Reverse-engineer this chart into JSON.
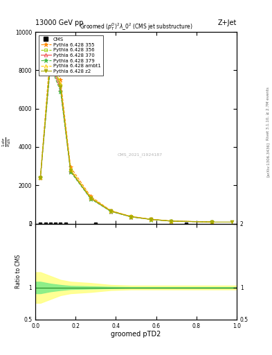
{
  "title_top": "13000 GeV pp",
  "title_right": "Z+Jet",
  "title_main": "Groomed $(p_T^D)^2\\lambda\\_0^2$ (CMS jet substructure)",
  "xlabel": "groomed pTD2",
  "ylabel_ratio": "Ratio to CMS",
  "right_label": "Rivet 3.1.10, ≥ 2.7M events",
  "arxiv_label": "[arXiv:1306.3436]",
  "watermark": "CMS_2021_I1924187",
  "lines": [
    {
      "label": "Pythia 6.428 355",
      "color": "#ff8800",
      "linestyle": "--",
      "marker": "*",
      "mfc": "#ff8800",
      "x": [
        0.025,
        0.075,
        0.125,
        0.175,
        0.275,
        0.375,
        0.475,
        0.575,
        0.675,
        0.875
      ],
      "y": [
        2400,
        9100,
        7500,
        2950,
        1420,
        680,
        380,
        230,
        140,
        90
      ]
    },
    {
      "label": "Pythia 6.428 356",
      "color": "#99cc00",
      "linestyle": "--",
      "marker": "s",
      "mfc": "none",
      "x": [
        0.025,
        0.075,
        0.125,
        0.175,
        0.275,
        0.375,
        0.475,
        0.575,
        0.675,
        0.875
      ],
      "y": [
        2400,
        8700,
        7200,
        2800,
        1350,
        660,
        365,
        225,
        135,
        88
      ]
    },
    {
      "label": "Pythia 6.428 370",
      "color": "#ee4444",
      "linestyle": "-",
      "marker": "^",
      "mfc": "none",
      "x": [
        0.025,
        0.075,
        0.125,
        0.175,
        0.275,
        0.375,
        0.475,
        0.575,
        0.675,
        0.875
      ],
      "y": [
        2400,
        8400,
        7000,
        2750,
        1310,
        645,
        358,
        220,
        132,
        85
      ]
    },
    {
      "label": "Pythia 6.428 379",
      "color": "#44bb44",
      "linestyle": "--",
      "marker": "*",
      "mfc": "#44bb44",
      "x": [
        0.025,
        0.075,
        0.125,
        0.175,
        0.275,
        0.375,
        0.475,
        0.575,
        0.675,
        0.875
      ],
      "y": [
        2400,
        8200,
        6900,
        2700,
        1290,
        635,
        352,
        216,
        130,
        83
      ]
    },
    {
      "label": "Pythia 6.428 ambt1",
      "color": "#ffcc00",
      "linestyle": "--",
      "marker": "^",
      "mfc": "none",
      "x": [
        0.025,
        0.075,
        0.125,
        0.175,
        0.275,
        0.375,
        0.475,
        0.575,
        0.675,
        0.875
      ],
      "y": [
        2400,
        8800,
        7300,
        2830,
        1360,
        668,
        370,
        228,
        137,
        87
      ]
    },
    {
      "label": "Pythia 6.428 z2",
      "color": "#aaaa00",
      "linestyle": "-",
      "marker": "v",
      "mfc": "#aaaa00",
      "x": [
        0.025,
        0.075,
        0.125,
        0.175,
        0.275,
        0.375,
        0.475,
        0.575,
        0.675,
        0.875,
        0.975
      ],
      "y": [
        2400,
        8600,
        7150,
        2770,
        1330,
        655,
        362,
        222,
        134,
        86,
        86
      ]
    }
  ],
  "cms_x": [
    0.025,
    0.05,
    0.075,
    0.1,
    0.125,
    0.15,
    0.3,
    0.75
  ],
  "ylim_main": [
    0,
    10000
  ],
  "ylim_ratio": [
    0.5,
    2.0
  ],
  "xlim": [
    0.0,
    1.0
  ],
  "ratio_x": [
    0.0,
    0.025,
    0.075,
    0.125,
    0.175,
    0.275,
    0.375,
    0.475,
    1.0
  ],
  "yellow_low": [
    0.76,
    0.76,
    0.82,
    0.88,
    0.91,
    0.93,
    0.96,
    0.97,
    0.97
  ],
  "yellow_high": [
    1.24,
    1.24,
    1.18,
    1.12,
    1.09,
    1.07,
    1.04,
    1.03,
    1.03
  ],
  "green_low": [
    0.91,
    0.91,
    0.94,
    0.96,
    0.975,
    0.982,
    0.989,
    0.994,
    0.994
  ],
  "green_high": [
    1.09,
    1.09,
    1.06,
    1.04,
    1.025,
    1.018,
    1.011,
    1.006,
    1.006
  ]
}
